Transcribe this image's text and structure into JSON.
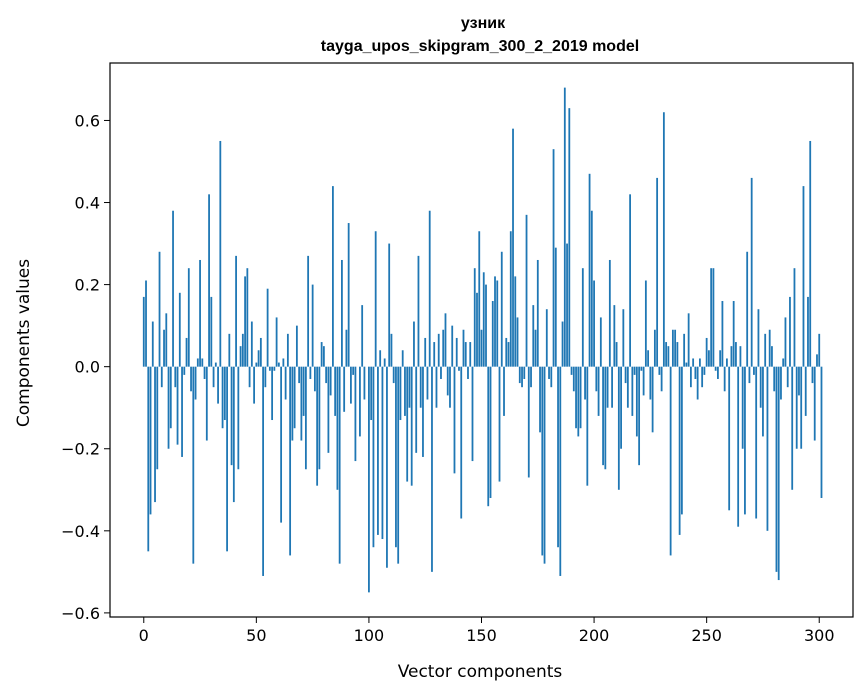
{
  "chart_data": {
    "type": "bar",
    "title_line1": "узник",
    "title_line2": "tayga_upos_skipgram_300_2_2019 model",
    "xlabel": "Vector components",
    "ylabel": "Components values",
    "xlim": [
      -15,
      315
    ],
    "ylim": [
      -0.61,
      0.74
    ],
    "xticks": [
      0,
      50,
      100,
      150,
      200,
      250,
      300
    ],
    "xtick_labels": [
      "0",
      "50",
      "100",
      "150",
      "200",
      "250",
      "300"
    ],
    "yticks": [
      -0.6,
      -0.4,
      -0.2,
      0.0,
      0.2,
      0.4,
      0.6
    ],
    "ytick_labels": [
      "−0.6",
      "−0.4",
      "−0.2",
      "0.0",
      "0.2",
      "0.4",
      "0.6"
    ],
    "bar_color": "#1f77b4",
    "grid": false,
    "x_start": 0,
    "values": [
      0.17,
      0.21,
      -0.45,
      -0.36,
      0.11,
      -0.33,
      -0.25,
      0.28,
      -0.05,
      0.09,
      0.13,
      -0.2,
      -0.15,
      0.38,
      -0.05,
      -0.19,
      0.18,
      -0.22,
      -0.02,
      0.07,
      0.24,
      -0.06,
      -0.48,
      -0.08,
      0.02,
      0.26,
      0.02,
      -0.03,
      -0.18,
      0.42,
      0.17,
      -0.05,
      0.01,
      -0.09,
      0.55,
      -0.15,
      -0.13,
      -0.45,
      0.08,
      -0.24,
      -0.33,
      0.27,
      -0.25,
      0.05,
      0.08,
      0.22,
      0.24,
      -0.05,
      0.11,
      -0.09,
      0.01,
      0.04,
      0.07,
      -0.51,
      -0.05,
      0.19,
      -0.01,
      -0.13,
      -0.01,
      0.12,
      0.01,
      -0.38,
      0.02,
      -0.08,
      0.08,
      -0.46,
      -0.18,
      -0.15,
      0.1,
      -0.04,
      -0.18,
      -0.12,
      -0.25,
      0.27,
      -0.03,
      0.2,
      -0.06,
      -0.29,
      -0.25,
      0.06,
      0.05,
      -0.04,
      -0.21,
      -0.07,
      0.44,
      -0.12,
      -0.3,
      -0.48,
      0.26,
      -0.11,
      0.09,
      0.35,
      -0.09,
      -0.02,
      -0.23,
      0.0,
      -0.17,
      0.15,
      -0.08,
      0.0,
      -0.55,
      -0.13,
      -0.44,
      0.33,
      -0.41,
      0.04,
      -0.42,
      0.02,
      -0.49,
      0.3,
      0.08,
      -0.04,
      -0.44,
      -0.48,
      -0.13,
      0.04,
      -0.12,
      -0.28,
      -0.1,
      -0.29,
      0.11,
      -0.21,
      0.27,
      -0.1,
      -0.22,
      0.07,
      -0.08,
      0.38,
      -0.5,
      0.06,
      -0.1,
      0.08,
      -0.03,
      0.09,
      0.13,
      -0.07,
      -0.1,
      0.1,
      -0.26,
      0.07,
      -0.01,
      -0.37,
      0.09,
      0.06,
      -0.03,
      0.06,
      -0.23,
      0.24,
      0.18,
      0.33,
      0.09,
      0.23,
      0.2,
      -0.34,
      -0.32,
      0.16,
      0.22,
      0.21,
      -0.28,
      0.28,
      -0.12,
      0.07,
      0.06,
      0.33,
      0.58,
      0.22,
      0.12,
      -0.04,
      -0.05,
      -0.03,
      0.37,
      -0.27,
      -0.05,
      0.15,
      0.09,
      0.26,
      -0.16,
      -0.46,
      -0.48,
      0.14,
      -0.03,
      -0.05,
      0.53,
      0.29,
      -0.44,
      -0.51,
      0.11,
      0.68,
      0.3,
      0.63,
      -0.02,
      -0.06,
      -0.15,
      -0.17,
      -0.15,
      0.24,
      -0.08,
      -0.29,
      0.47,
      0.38,
      0.21,
      -0.06,
      -0.12,
      0.12,
      -0.24,
      -0.25,
      -0.1,
      0.26,
      -0.1,
      0.15,
      0.06,
      -0.3,
      -0.2,
      0.14,
      -0.04,
      -0.1,
      0.42,
      -0.12,
      -0.02,
      -0.17,
      -0.24,
      -0.01,
      -0.07,
      0.21,
      0.04,
      -0.08,
      -0.16,
      0.09,
      0.46,
      -0.02,
      -0.06,
      0.62,
      0.06,
      0.05,
      -0.46,
      0.09,
      0.09,
      0.06,
      -0.41,
      -0.36,
      0.08,
      0.01,
      0.13,
      -0.05,
      0.02,
      -0.03,
      -0.08,
      0.02,
      -0.05,
      -0.02,
      0.07,
      0.04,
      0.24,
      0.24,
      -0.01,
      -0.03,
      0.04,
      0.16,
      -0.06,
      0.02,
      -0.35,
      0.05,
      0.16,
      0.06,
      -0.39,
      0.05,
      -0.2,
      -0.36,
      0.28,
      -0.04,
      0.46,
      -0.02,
      -0.37,
      0.14,
      -0.1,
      -0.17,
      0.08,
      -0.4,
      0.09,
      0.05,
      -0.06,
      -0.5,
      -0.52,
      -0.08,
      0.02,
      0.12,
      -0.05,
      0.17,
      -0.3,
      0.24,
      -0.2,
      -0.07,
      -0.2,
      0.44,
      -0.12,
      0.17,
      0.55,
      -0.04,
      -0.18,
      0.03,
      0.08,
      -0.32
    ]
  }
}
